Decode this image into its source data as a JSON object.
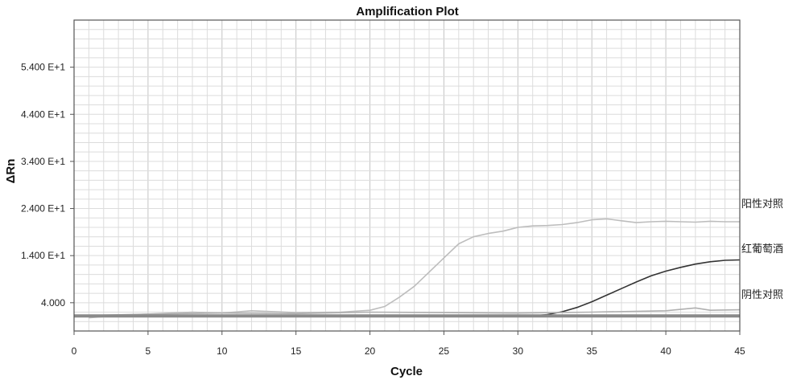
{
  "chart_data": {
    "type": "line",
    "title": "Amplification Plot",
    "xlabel": "Cycle",
    "ylabel": "ΔRn",
    "xlim": [
      0,
      45
    ],
    "ylim": [
      -2,
      64
    ],
    "grid": true,
    "x_ticks": [
      0,
      5,
      10,
      15,
      20,
      25,
      30,
      35,
      40,
      45
    ],
    "y_ticks": [
      {
        "value": 4,
        "label": "4.000"
      },
      {
        "value": 14,
        "label": "1.400 E+1"
      },
      {
        "value": 24,
        "label": "2.400 E+1"
      },
      {
        "value": 34,
        "label": "3.400 E+1"
      },
      {
        "value": 44,
        "label": "4.400 E+1"
      },
      {
        "value": 54,
        "label": "5.400 E+1"
      }
    ],
    "threshold": {
      "value": 1.2,
      "color": "#8a8a8a"
    },
    "series": [
      {
        "name": "阳性对照",
        "color": "#bdbdbd",
        "x": [
          1,
          3,
          5,
          8,
          10,
          12,
          15,
          18,
          20,
          21,
          22,
          23,
          24,
          25,
          26,
          27,
          28,
          29,
          30,
          31,
          32,
          33,
          34,
          35,
          36,
          37,
          38,
          39,
          40,
          41,
          42,
          43,
          44,
          45
        ],
        "values": [
          0.8,
          1.3,
          1.6,
          2.0,
          1.8,
          2.3,
          1.9,
          2.0,
          2.4,
          3.2,
          5.2,
          7.5,
          10.5,
          13.5,
          16.5,
          18.0,
          18.7,
          19.2,
          20.0,
          20.3,
          20.4,
          20.6,
          21.0,
          21.6,
          21.8,
          21.4,
          21.0,
          21.2,
          21.3,
          21.2,
          21.1,
          21.3,
          21.2,
          21.2
        ]
      },
      {
        "name": "红葡萄酒",
        "color": "#333333",
        "x": [
          31,
          32,
          33,
          34,
          35,
          36,
          37,
          38,
          39,
          40,
          41,
          42,
          43,
          44,
          45
        ],
        "values": [
          1.2,
          1.5,
          2.1,
          3.0,
          4.2,
          5.6,
          7.0,
          8.4,
          9.7,
          10.7,
          11.5,
          12.2,
          12.7,
          13.0,
          13.1
        ]
      },
      {
        "name": "阴性对照",
        "color": "#b0b0b0",
        "x": [
          0,
          5,
          10,
          15,
          20,
          25,
          30,
          35,
          40,
          42,
          43,
          45
        ],
        "values": [
          1.2,
          1.6,
          1.8,
          1.7,
          2.0,
          1.9,
          1.8,
          2.0,
          2.3,
          2.9,
          2.4,
          2.5
        ]
      }
    ]
  }
}
